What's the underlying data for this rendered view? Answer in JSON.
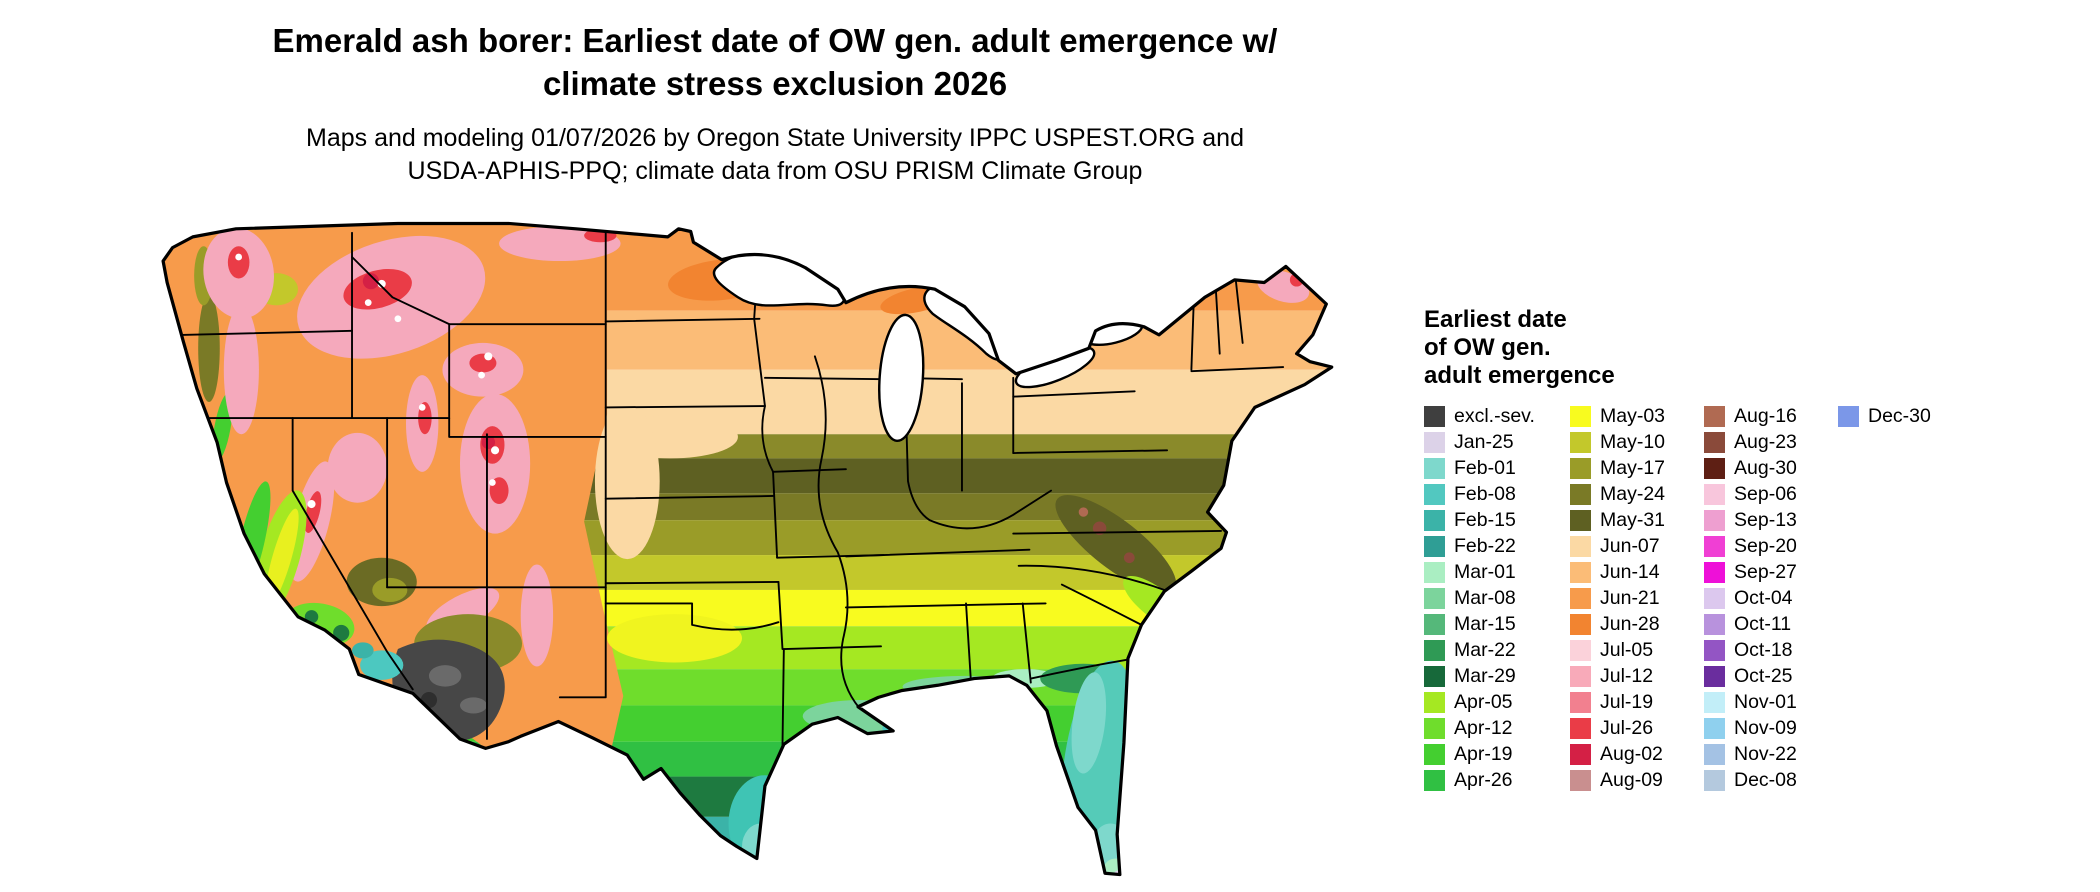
{
  "header": {
    "title_line1": "Emerald ash borer: Earliest date of OW gen. adult emergence w/",
    "title_line2": "climate stress exclusion 2026",
    "subtitle_line1": "Maps and modeling 01/07/2026 by Oregon State University IPPC USPEST.ORG and",
    "subtitle_line2": "USDA-APHIS-PPQ; climate data from OSU PRISM Climate Group"
  },
  "map": {
    "region": "Continental United States",
    "outline_color": "#000000",
    "water_color": "#ffffff"
  },
  "legend": {
    "title_lines": [
      "Earliest date",
      "of OW gen.",
      "adult emergence"
    ],
    "columns": [
      [
        {
          "label": "excl.-sev.",
          "color": "#3f3f3f"
        },
        {
          "label": "Jan-25",
          "color": "#dcd2e8"
        },
        {
          "label": "Feb-01",
          "color": "#7ed8cc"
        },
        {
          "label": "Feb-08",
          "color": "#52c8c0"
        },
        {
          "label": "Feb-15",
          "color": "#3bb3a8"
        },
        {
          "label": "Feb-22",
          "color": "#2f9e95"
        },
        {
          "label": "Mar-01",
          "color": "#aaeec2"
        },
        {
          "label": "Mar-08",
          "color": "#7cd49c"
        },
        {
          "label": "Mar-15",
          "color": "#55b87a"
        },
        {
          "label": "Mar-22",
          "color": "#2f9a55"
        },
        {
          "label": "Mar-29",
          "color": "#17693a"
        },
        {
          "label": "Apr-05",
          "color": "#a5e822"
        },
        {
          "label": "Apr-12",
          "color": "#6fdd2c"
        },
        {
          "label": "Apr-19",
          "color": "#44cf30"
        },
        {
          "label": "Apr-26",
          "color": "#30c043"
        }
      ],
      [
        {
          "label": "May-03",
          "color": "#f8fb1f"
        },
        {
          "label": "May-10",
          "color": "#c3c82b"
        },
        {
          "label": "May-17",
          "color": "#9a9c28"
        },
        {
          "label": "May-24",
          "color": "#7a7a26"
        },
        {
          "label": "May-31",
          "color": "#5e6022"
        },
        {
          "label": "Jun-07",
          "color": "#fbd9a4"
        },
        {
          "label": "Jun-14",
          "color": "#fbbc77"
        },
        {
          "label": "Jun-21",
          "color": "#f79b4b"
        },
        {
          "label": "Jun-28",
          "color": "#f28430"
        },
        {
          "label": "Jul-05",
          "color": "#fbd2da"
        },
        {
          "label": "Jul-12",
          "color": "#f8aab9"
        },
        {
          "label": "Jul-19",
          "color": "#f2808f"
        },
        {
          "label": "Jul-26",
          "color": "#ea3c47"
        },
        {
          "label": "Aug-02",
          "color": "#d42045"
        },
        {
          "label": "Aug-09",
          "color": "#c98f8f"
        }
      ],
      [
        {
          "label": "Aug-16",
          "color": "#b06a52"
        },
        {
          "label": "Aug-23",
          "color": "#8a4a3a"
        },
        {
          "label": "Aug-30",
          "color": "#5e1f14"
        },
        {
          "label": "Sep-06",
          "color": "#f8c6dc"
        },
        {
          "label": "Sep-13",
          "color": "#ee9fd0"
        },
        {
          "label": "Sep-20",
          "color": "#f03fd4"
        },
        {
          "label": "Sep-27",
          "color": "#ee10d8"
        },
        {
          "label": "Oct-04",
          "color": "#dcc8ee"
        },
        {
          "label": "Oct-11",
          "color": "#b892dd"
        },
        {
          "label": "Oct-18",
          "color": "#9355c4"
        },
        {
          "label": "Oct-25",
          "color": "#6a2d9e"
        },
        {
          "label": "Nov-01",
          "color": "#c2eef8"
        },
        {
          "label": "Nov-09",
          "color": "#8fd0ee"
        },
        {
          "label": "Nov-22",
          "color": "#a4c2e4"
        },
        {
          "label": "Dec-08",
          "color": "#b4c9de"
        }
      ],
      [
        {
          "label": "Dec-30",
          "color": "#7b97e8"
        }
      ]
    ]
  }
}
